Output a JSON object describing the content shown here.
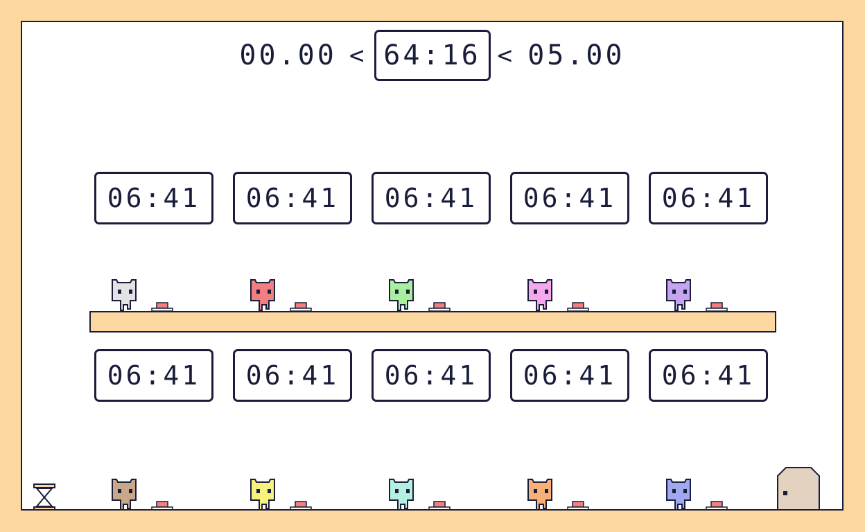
{
  "header": {
    "start_time": "00.00",
    "current_time": "64:16",
    "end_time": "05.00",
    "separator": "<"
  },
  "clocks_top": [
    "06:41",
    "06:41",
    "06:41",
    "06:41",
    "06:41"
  ],
  "clocks_bottom": [
    "06:41",
    "06:41",
    "06:41",
    "06:41",
    "06:41"
  ],
  "cats_top": [
    {
      "name": "cat-gray",
      "color": "#e3e3e3"
    },
    {
      "name": "cat-red",
      "color": "#f08080"
    },
    {
      "name": "cat-green",
      "color": "#a8f0a0"
    },
    {
      "name": "cat-pink",
      "color": "#f5a8ec"
    },
    {
      "name": "cat-purple",
      "color": "#c6a4f0"
    }
  ],
  "cats_bottom": [
    {
      "name": "cat-brown",
      "color": "#c8a888"
    },
    {
      "name": "cat-yellow",
      "color": "#f6f27e"
    },
    {
      "name": "cat-mint",
      "color": "#b4f0e0"
    },
    {
      "name": "cat-orange",
      "color": "#f6b078"
    },
    {
      "name": "cat-blue",
      "color": "#a0a8f0"
    }
  ],
  "colors": {
    "frame": "#fcd7a0",
    "outline": "#1a1d3a",
    "button": "#f08080",
    "door": "#e3d2bf"
  }
}
